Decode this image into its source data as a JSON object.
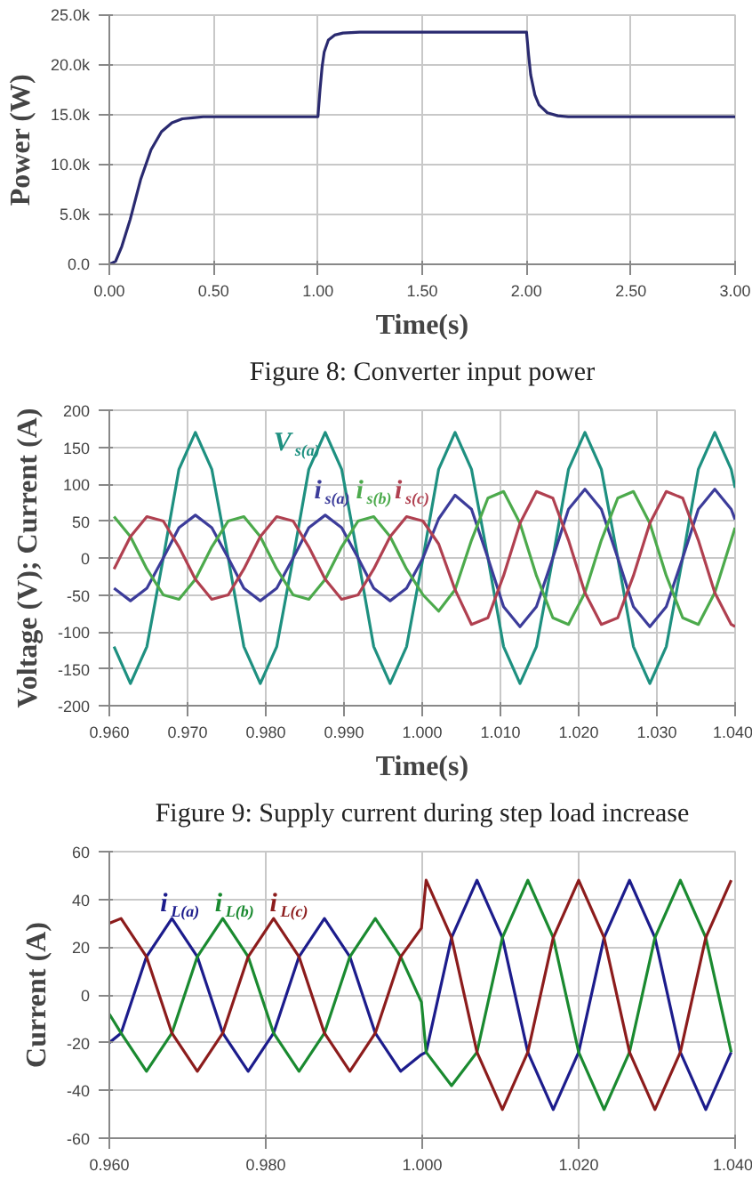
{
  "chart_data": [
    {
      "type": "line",
      "xlabel": "Time(s)",
      "ylabel": "Power (W)",
      "xlim": [
        0,
        3
      ],
      "ylim": [
        0,
        25000
      ],
      "xticks": [
        {
          "value": 0,
          "label": "0.00"
        },
        {
          "value": 0.5,
          "label": "0.50"
        },
        {
          "value": 1,
          "label": "1.00"
        },
        {
          "value": 1.5,
          "label": "1.50"
        },
        {
          "value": 2,
          "label": "2.00"
        },
        {
          "value": 2.5,
          "label": "2.50"
        },
        {
          "value": 3,
          "label": "3.00"
        }
      ],
      "yticks": [
        {
          "value": 0,
          "label": "0.0"
        },
        {
          "value": 5000,
          "label": "5.0k"
        },
        {
          "value": 10000,
          "label": "10.0k"
        },
        {
          "value": 15000,
          "label": "15.0k"
        },
        {
          "value": 20000,
          "label": "20.0k"
        },
        {
          "value": 25000,
          "label": "25.0k"
        }
      ],
      "grid": true,
      "line_style": "solid",
      "x": [
        0,
        0.03,
        0.06,
        0.1,
        0.15,
        0.2,
        0.25,
        0.3,
        0.35,
        0.4,
        0.45,
        0.5,
        1.0,
        1.01,
        1.02,
        1.03,
        1.05,
        1.08,
        1.12,
        1.2,
        2.0,
        2.01,
        2.02,
        2.04,
        2.06,
        2.1,
        2.15,
        2.2,
        3.0
      ],
      "series": [
        {
          "color": "#2a2a70",
          "values": [
            0,
            300,
            1800,
            4500,
            8500,
            11500,
            13300,
            14200,
            14600,
            14700,
            14800,
            14800,
            14800,
            17500,
            19800,
            21300,
            22500,
            23000,
            23200,
            23300,
            23300,
            21000,
            19000,
            17000,
            16000,
            15200,
            14900,
            14800,
            14800
          ]
        }
      ],
      "annotations": [
        "Figure 8: Converter input power"
      ]
    },
    {
      "type": "line",
      "xlabel": "Time(s)",
      "ylabel": "Voltage (V); Current (A)",
      "xlim": [
        0.96,
        1.04
      ],
      "ylim": [
        -200,
        200
      ],
      "xticks": [
        {
          "value": 0.96,
          "label": "0.960"
        },
        {
          "value": 0.97,
          "label": "0.970"
        },
        {
          "value": 0.98,
          "label": "0.980"
        },
        {
          "value": 0.99,
          "label": "0.990"
        },
        {
          "value": 1.0,
          "label": "1.000"
        },
        {
          "value": 1.01,
          "label": "1.010"
        },
        {
          "value": 1.02,
          "label": "1.020"
        },
        {
          "value": 1.03,
          "label": "1.030"
        },
        {
          "value": 1.04,
          "label": "1.040"
        }
      ],
      "yticks": [
        -200,
        -150,
        -100,
        -50,
        0,
        50,
        100,
        150,
        200
      ],
      "grid": true,
      "line_style": "solid",
      "x": [
        0.9606,
        0.9627,
        0.9648,
        0.9669,
        0.9689,
        0.971,
        0.9731,
        0.9752,
        0.9772,
        0.9793,
        0.9814,
        0.9835,
        0.9855,
        0.9876,
        0.9897,
        0.9918,
        0.9938,
        0.9959,
        0.998,
        1.0001,
        1.0021,
        1.0042,
        1.0063,
        1.0084,
        1.0104,
        1.0125,
        1.0146,
        1.0167,
        1.0187,
        1.0208,
        1.0229,
        1.025,
        1.027,
        1.0291,
        1.0312,
        1.0333,
        1.0353,
        1.0374,
        1.0395,
        1.04
      ],
      "series": [
        {
          "name": "V$_{s(a)}$",
          "color": "#1e9080",
          "values": [
            -120,
            -170,
            -120,
            0,
            120,
            170,
            120,
            0,
            -120,
            -170,
            -120,
            0,
            120,
            170,
            120,
            0,
            -120,
            -170,
            -120,
            0,
            120,
            170,
            120,
            0,
            -120,
            -170,
            -120,
            0,
            120,
            170,
            120,
            0,
            -120,
            -170,
            -120,
            0,
            120,
            170,
            120,
            95
          ]
        },
        {
          "name": "i$_{s(a)}$",
          "color": "#3c3c9a",
          "values": [
            -41,
            -58,
            -41,
            0,
            41,
            58,
            41,
            0,
            -41,
            -58,
            -41,
            0,
            41,
            58,
            41,
            0,
            -41,
            -58,
            -41,
            0,
            53,
            85,
            66,
            0,
            -66,
            -93,
            -66,
            0,
            66,
            93,
            66,
            0,
            -66,
            -93,
            -66,
            0,
            66,
            93,
            66,
            52
          ]
        },
        {
          "name": "i$_{s(b)}$",
          "color": "#4caa4c",
          "values": [
            56,
            29,
            -15,
            -50,
            -56,
            -29,
            15,
            50,
            56,
            29,
            -15,
            -50,
            -56,
            -29,
            15,
            50,
            56,
            29,
            -15,
            -50,
            -72,
            -43,
            24,
            81,
            90,
            47,
            -24,
            -81,
            -90,
            -47,
            24,
            81,
            90,
            47,
            -24,
            -81,
            -90,
            -47,
            24,
            41
          ]
        },
        {
          "name": "i$_{s(c)}$",
          "color": "#b04050",
          "values": [
            -15,
            29,
            56,
            50,
            15,
            -29,
            -56,
            -50,
            -15,
            29,
            56,
            50,
            15,
            -29,
            -56,
            -50,
            -15,
            29,
            56,
            50,
            19,
            -43,
            -90,
            -81,
            -24,
            47,
            90,
            81,
            24,
            -47,
            -90,
            -81,
            -24,
            47,
            90,
            81,
            24,
            -47,
            -90,
            -93
          ]
        }
      ],
      "annotations": [
        "Figure 9: Supply current during step load increase"
      ]
    },
    {
      "type": "line",
      "ylabel": "Current (A)",
      "xlim": [
        0.96,
        1.04
      ],
      "ylim": [
        -60,
        60
      ],
      "xticks": [
        {
          "value": 0.96,
          "label": "0.960"
        },
        {
          "value": 0.98,
          "label": "0.980"
        },
        {
          "value": 1.0,
          "label": "1.000"
        },
        {
          "value": 1.02,
          "label": "1.020"
        },
        {
          "value": 1.04,
          "label": "1.040"
        }
      ],
      "yticks": [
        -60,
        -40,
        -20,
        0,
        20,
        40,
        60
      ],
      "grid": true,
      "line_style": "solid",
      "x": [
        0.96,
        0.9615,
        0.96475,
        0.968,
        0.97125,
        0.9745,
        0.97775,
        0.981,
        0.98425,
        0.9875,
        0.99075,
        0.994,
        0.99725,
        0.9999,
        1.0005,
        1.00375,
        1.007,
        1.01025,
        1.0135,
        1.01675,
        1.02,
        1.02325,
        1.0265,
        1.02975,
        1.033,
        1.03625,
        1.0395
      ],
      "series": [
        {
          "name": "i$_{L(a)}$",
          "color": "#1c1c8c",
          "values": [
            -20,
            -16,
            16,
            32,
            16,
            -16,
            -32,
            -16,
            16,
            32,
            16,
            -16,
            -32,
            -25,
            -24,
            24,
            48,
            24,
            -24,
            -48,
            -24,
            24,
            48,
            24,
            -24,
            -48,
            -24
          ]
        },
        {
          "name": "i$_{L(b)}$",
          "color": "#1a8a30",
          "values": [
            -8,
            -16,
            -32,
            -16,
            16,
            32,
            16,
            -16,
            -32,
            -16,
            16,
            32,
            16,
            -3,
            -24,
            -38,
            -24,
            24,
            48,
            24,
            -24,
            -48,
            -24,
            24,
            48,
            24,
            -24
          ]
        },
        {
          "name": "i$_{L(c)}$",
          "color": "#8c1c1c",
          "values": [
            30,
            32,
            16,
            -16,
            -32,
            -16,
            16,
            32,
            16,
            -16,
            -32,
            -16,
            16,
            28,
            48,
            24,
            -24,
            -48,
            -24,
            24,
            48,
            24,
            -24,
            -48,
            -24,
            24,
            48
          ]
        }
      ]
    }
  ]
}
